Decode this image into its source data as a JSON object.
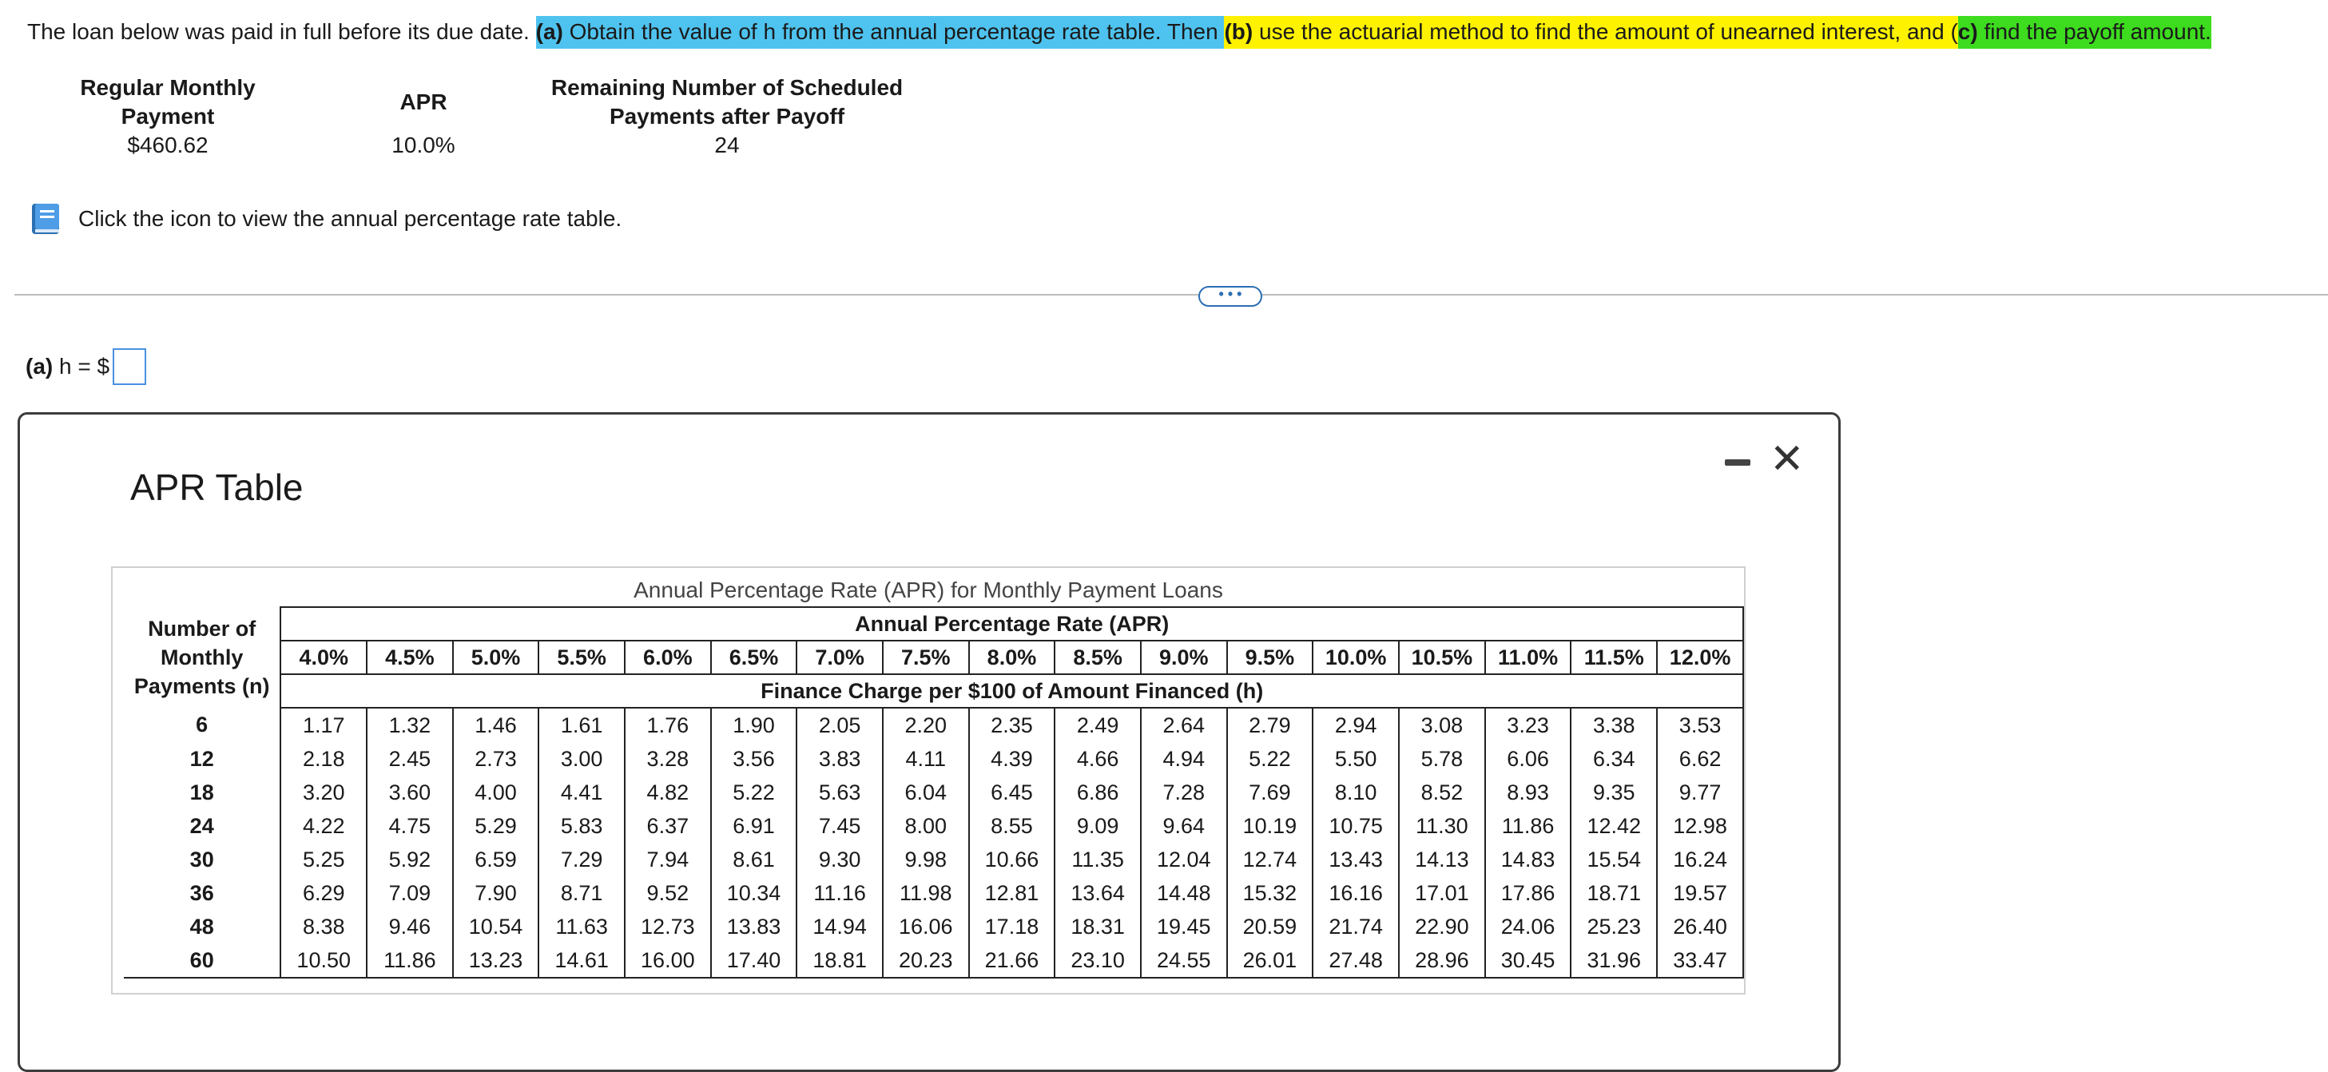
{
  "question": {
    "intro": "The loan below was paid in full before its due date. ",
    "part_a_label": "(a)",
    "part_a_text": " Obtain the value of h from the annual percentage rate table. Then ",
    "part_b_label": "(b)",
    "part_b_text": " use the actuarial method to find the amount of unearned interest, and ",
    "part_c_open": "(",
    "part_c_label": "c)",
    "part_c_text": " find the payoff amount."
  },
  "loan": {
    "col1_head_1": "Regular Monthly",
    "col1_head_2": "Payment",
    "col1_value": "$460.62",
    "col2_head": "APR",
    "col2_value": "10.0%",
    "col3_head_1": "Remaining Number of Scheduled",
    "col3_head_2": "Payments after Payoff",
    "col3_value": "24"
  },
  "icon_prompt": "Click the icon to view the annual percentage rate table.",
  "more_button": "• • •",
  "answer": {
    "label_bold": "(a)",
    "label_rest": " h = $"
  },
  "modal": {
    "title": "APR Table",
    "caption": "Annual Percentage Rate (APR) for Monthly Payment Loans",
    "apr_header": "Annual Percentage Rate (APR)",
    "finance_header": "Finance Charge per $100 of Amount Financed (h)",
    "n_header_1": "Number of",
    "n_header_2": "Monthly",
    "n_header_3": "Payments (n)",
    "rates": [
      "4.0%",
      "4.5%",
      "5.0%",
      "5.5%",
      "6.0%",
      "6.5%",
      "7.0%",
      "7.5%",
      "8.0%",
      "8.5%",
      "9.0%",
      "9.5%",
      "10.0%",
      "10.5%",
      "11.0%",
      "11.5%",
      "12.0%"
    ],
    "rows": [
      {
        "n": "6",
        "h": [
          "1.17",
          "1.32",
          "1.46",
          "1.61",
          "1.76",
          "1.90",
          "2.05",
          "2.20",
          "2.35",
          "2.49",
          "2.64",
          "2.79",
          "2.94",
          "3.08",
          "3.23",
          "3.38",
          "3.53"
        ]
      },
      {
        "n": "12",
        "h": [
          "2.18",
          "2.45",
          "2.73",
          "3.00",
          "3.28",
          "3.56",
          "3.83",
          "4.11",
          "4.39",
          "4.66",
          "4.94",
          "5.22",
          "5.50",
          "5.78",
          "6.06",
          "6.34",
          "6.62"
        ]
      },
      {
        "n": "18",
        "h": [
          "3.20",
          "3.60",
          "4.00",
          "4.41",
          "4.82",
          "5.22",
          "5.63",
          "6.04",
          "6.45",
          "6.86",
          "7.28",
          "7.69",
          "8.10",
          "8.52",
          "8.93",
          "9.35",
          "9.77"
        ]
      },
      {
        "n": "24",
        "h": [
          "4.22",
          "4.75",
          "5.29",
          "5.83",
          "6.37",
          "6.91",
          "7.45",
          "8.00",
          "8.55",
          "9.09",
          "9.64",
          "10.19",
          "10.75",
          "11.30",
          "11.86",
          "12.42",
          "12.98"
        ]
      },
      {
        "n": "30",
        "h": [
          "5.25",
          "5.92",
          "6.59",
          "7.29",
          "7.94",
          "8.61",
          "9.30",
          "9.98",
          "10.66",
          "11.35",
          "12.04",
          "12.74",
          "13.43",
          "14.13",
          "14.83",
          "15.54",
          "16.24"
        ]
      },
      {
        "n": "36",
        "h": [
          "6.29",
          "7.09",
          "7.90",
          "8.71",
          "9.52",
          "10.34",
          "11.16",
          "11.98",
          "12.81",
          "13.64",
          "14.48",
          "15.32",
          "16.16",
          "17.01",
          "17.86",
          "18.71",
          "19.57"
        ]
      },
      {
        "n": "48",
        "h": [
          "8.38",
          "9.46",
          "10.54",
          "11.63",
          "12.73",
          "13.83",
          "14.94",
          "16.06",
          "17.18",
          "18.31",
          "19.45",
          "20.59",
          "21.74",
          "22.90",
          "24.06",
          "25.23",
          "26.40"
        ]
      },
      {
        "n": "60",
        "h": [
          "10.50",
          "11.86",
          "13.23",
          "14.61",
          "16.00",
          "17.40",
          "18.81",
          "20.23",
          "21.66",
          "23.10",
          "24.55",
          "26.01",
          "27.48",
          "28.96",
          "30.45",
          "31.96",
          "33.47"
        ]
      }
    ]
  },
  "colors": {
    "blue_highlight": "#4fc3ef",
    "yellow_highlight": "#fff200",
    "green_highlight": "#3ddc1f",
    "accent": "#2c6fb3"
  }
}
